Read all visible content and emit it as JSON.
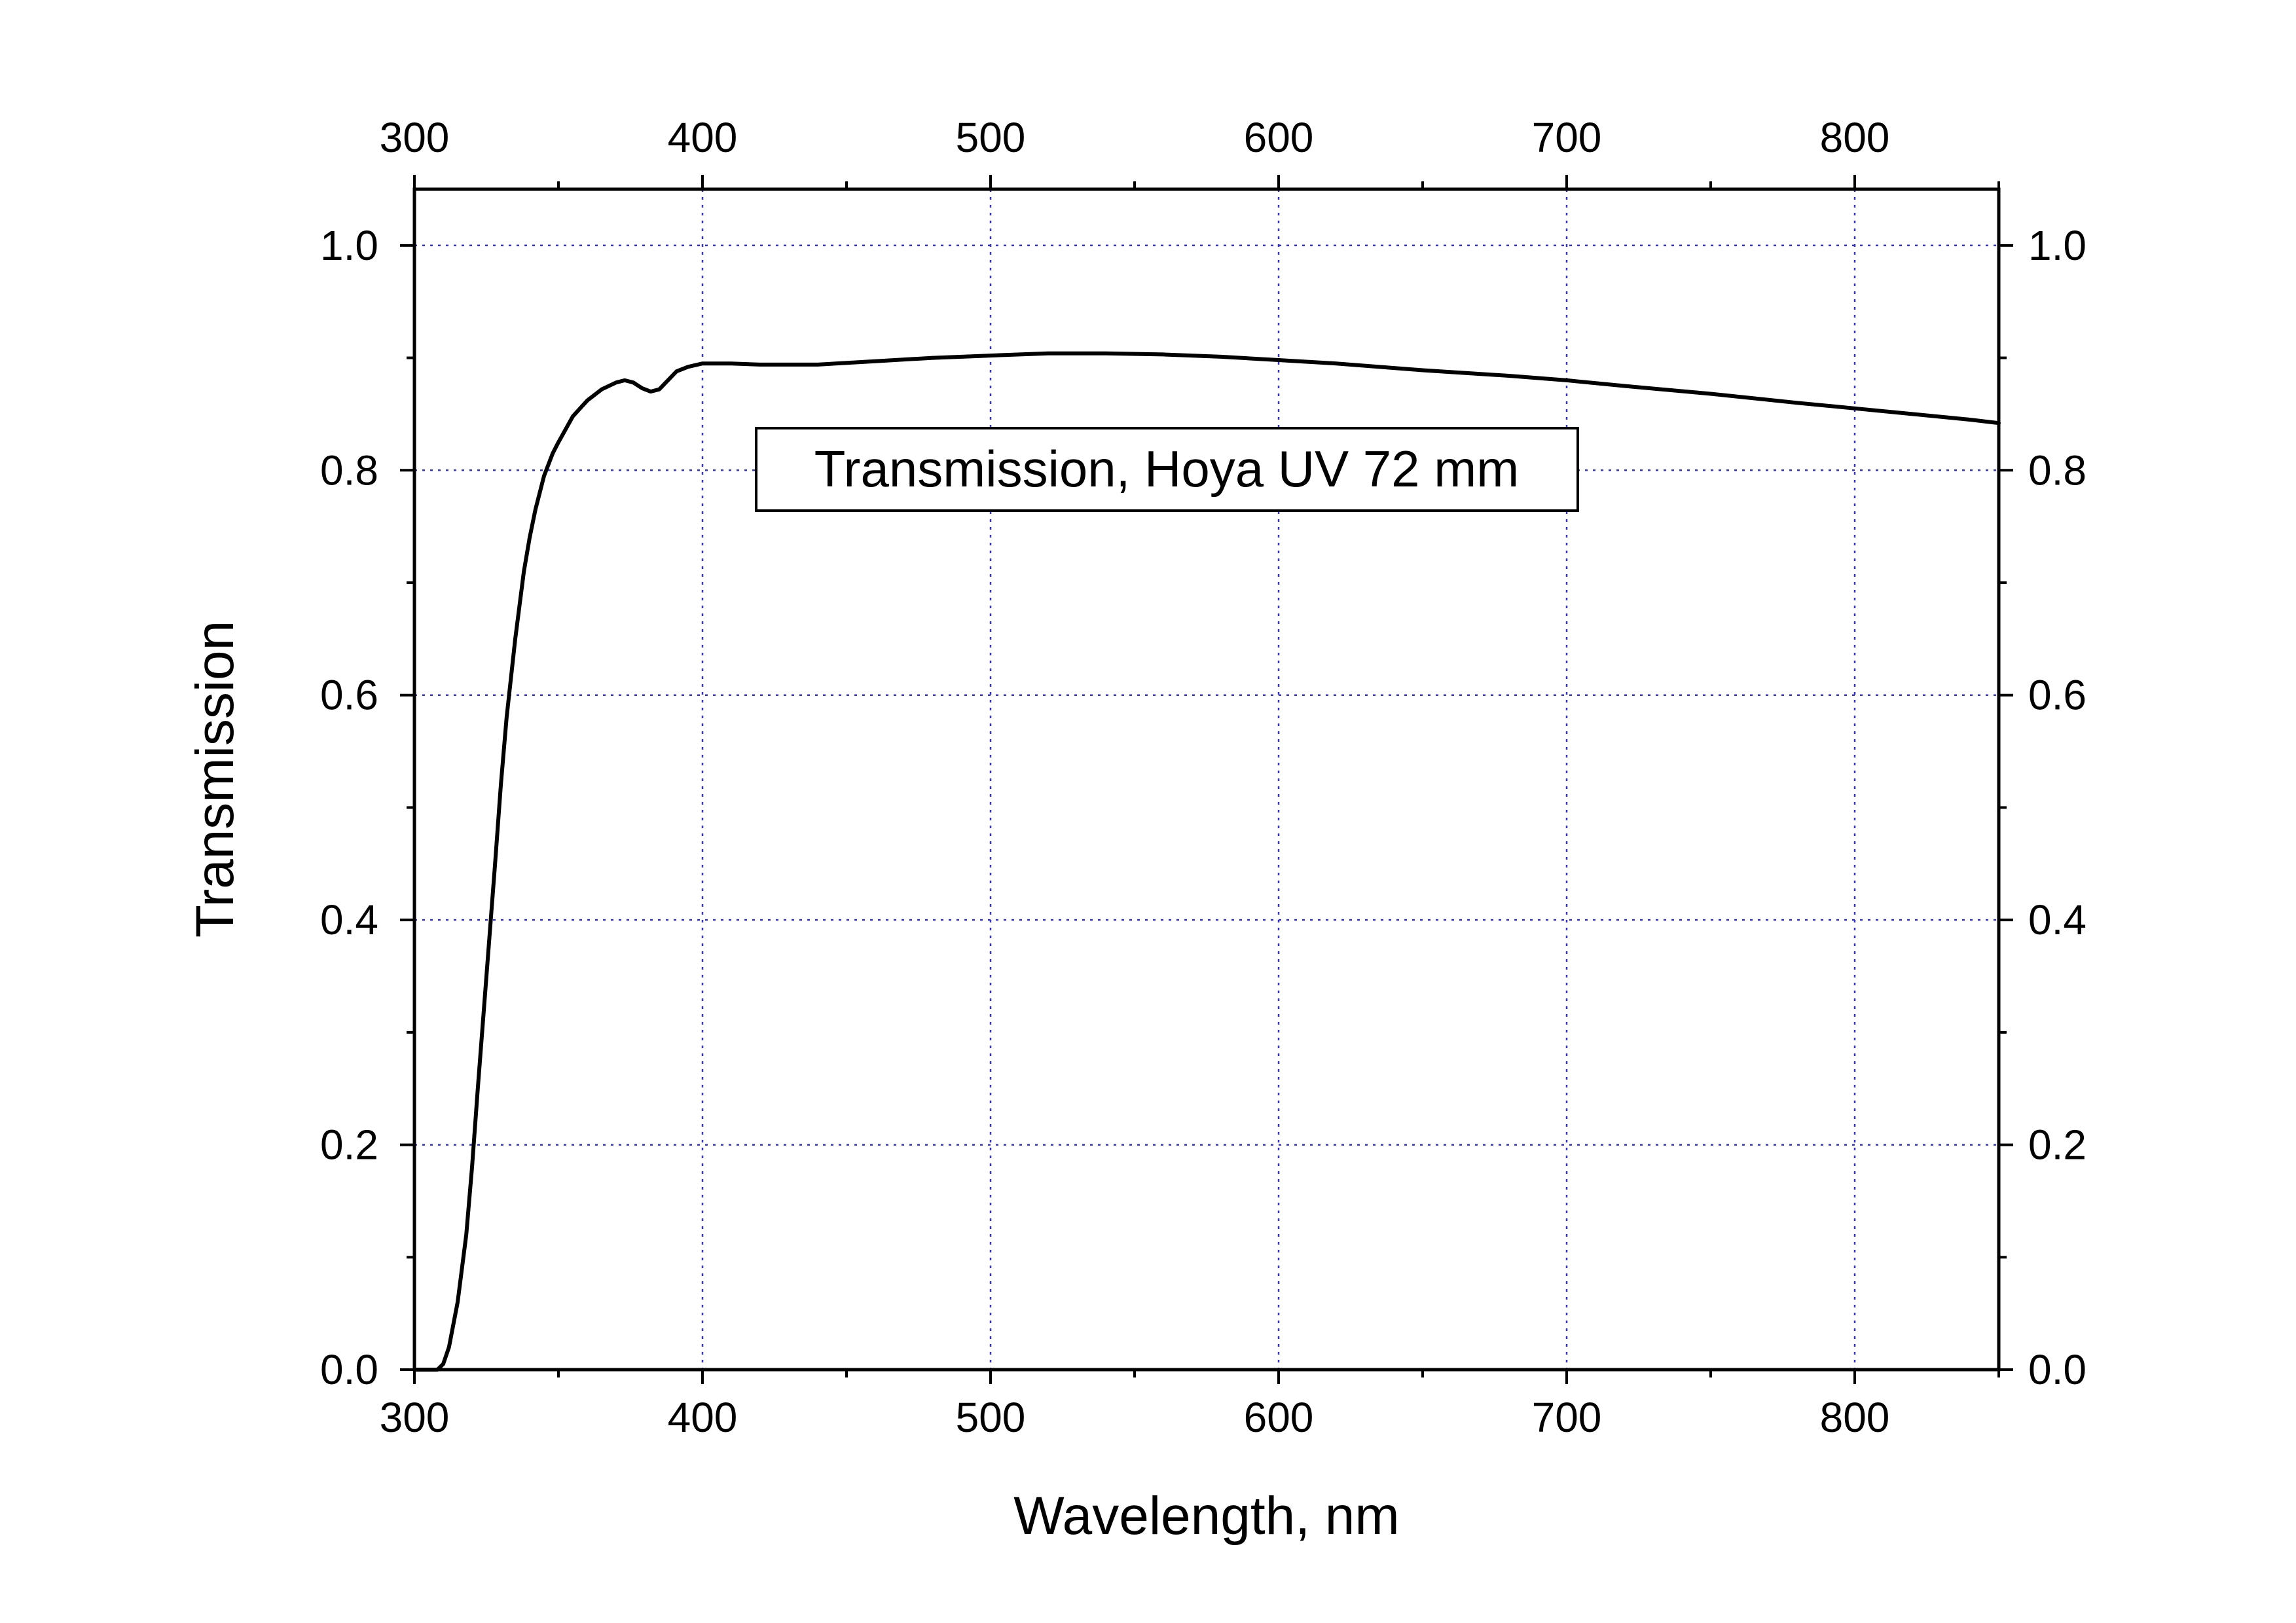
{
  "chart_data": {
    "type": "line",
    "xlabel": "Wavelength, nm",
    "ylabel": "Transmission",
    "xlim": [
      300,
      850
    ],
    "ylim": [
      0,
      1.05
    ],
    "x_ticks": [
      300,
      400,
      500,
      600,
      700,
      800
    ],
    "y_ticks": [
      0.0,
      0.2,
      0.4,
      0.6,
      0.8,
      1.0
    ],
    "x_tick_labels": [
      "300",
      "400",
      "500",
      "600",
      "700",
      "800"
    ],
    "y_tick_labels": [
      "0.0",
      "0.2",
      "0.4",
      "0.6",
      "0.8",
      "1.0"
    ],
    "x_minor_step": 50,
    "y_minor_step": 0.1,
    "grid": true,
    "grid_color": "#3333cc",
    "line_color": "#000000",
    "mirror_axes": true,
    "annotation": "Transmission, Hoya UV 72 mm",
    "series": [
      {
        "x": [
          300,
          305,
          308,
          310,
          312,
          315,
          318,
          320,
          322,
          325,
          328,
          330,
          332,
          335,
          338,
          340,
          342,
          345,
          348,
          350,
          355,
          360,
          365,
          370,
          373,
          376,
          379,
          382,
          385,
          388,
          391,
          395,
          400,
          410,
          420,
          440,
          460,
          480,
          500,
          520,
          540,
          560,
          580,
          600,
          620,
          650,
          680,
          700,
          720,
          750,
          780,
          800,
          820,
          840,
          850
        ],
        "y": [
          0.0,
          0.0,
          0.0,
          0.005,
          0.02,
          0.06,
          0.12,
          0.18,
          0.25,
          0.35,
          0.45,
          0.52,
          0.58,
          0.65,
          0.71,
          0.74,
          0.765,
          0.795,
          0.815,
          0.825,
          0.848,
          0.862,
          0.872,
          0.878,
          0.88,
          0.878,
          0.873,
          0.87,
          0.872,
          0.88,
          0.888,
          0.892,
          0.895,
          0.895,
          0.894,
          0.894,
          0.897,
          0.9,
          0.902,
          0.904,
          0.904,
          0.903,
          0.901,
          0.898,
          0.895,
          0.889,
          0.884,
          0.88,
          0.875,
          0.868,
          0.86,
          0.855,
          0.85,
          0.845,
          0.842
        ]
      }
    ]
  }
}
